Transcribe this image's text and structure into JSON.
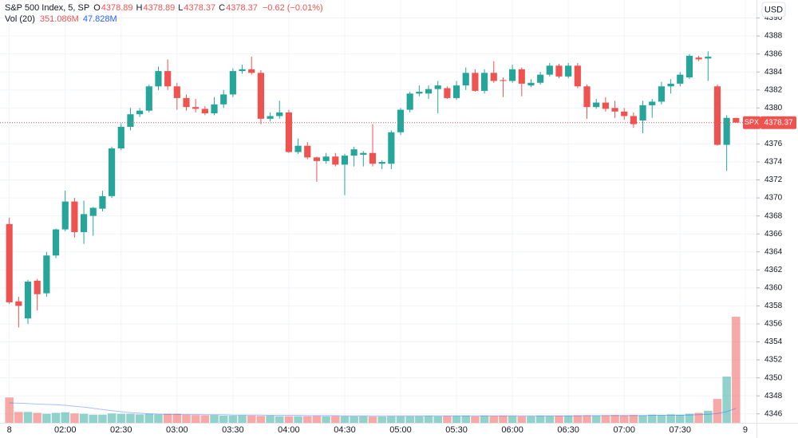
{
  "chart_data": {
    "type": "candlestick",
    "title": "S&P 500 Index, 5, SP",
    "symbol": "SPX",
    "currency": "USD",
    "ohlc_letters": [
      "O",
      "H",
      "L",
      "C"
    ],
    "change_label": "−0.62 (−0.01%)",
    "up_color": "#26a69a",
    "down_color": "#ef5350",
    "xlim": [
      -1,
      80.2
    ],
    "xticks": [
      {
        "value": 0,
        "label": "8"
      },
      {
        "value": 6,
        "label": "02:00"
      },
      {
        "value": 12,
        "label": "02:30"
      },
      {
        "value": 18,
        "label": "03:00"
      },
      {
        "value": 24,
        "label": "03:30"
      },
      {
        "value": 30,
        "label": "04:00"
      },
      {
        "value": 36,
        "label": "04:30"
      },
      {
        "value": 42,
        "label": "05:00"
      },
      {
        "value": 48,
        "label": "05:30"
      },
      {
        "value": 54,
        "label": "06:00"
      },
      {
        "value": 60,
        "label": "06:30"
      },
      {
        "value": 66,
        "label": "07:00"
      },
      {
        "value": 72,
        "label": "07:30"
      },
      {
        "value": 79,
        "label": "9"
      }
    ],
    "ylim": [
      4345,
      4392
    ],
    "yticks": [
      4346,
      4348,
      4350,
      4352,
      4354,
      4356,
      4358,
      4360,
      4362,
      4364,
      4366,
      4368,
      4370,
      4372,
      4374,
      4376,
      4378,
      4380,
      4382,
      4384,
      4386,
      4388,
      4390
    ],
    "grid": true,
    "open": [
      4367.1,
      4358.5,
      4356.6,
      4360.8,
      4359.4,
      4363.6,
      4366.5,
      4369.6,
      4366.2,
      4368.0,
      4368.8,
      4370.2,
      4375.5,
      4377.9,
      4379.3,
      4379.7,
      4382.4,
      4384.1,
      4382.4,
      4381.1,
      4380.1,
      4379.9,
      4379.4,
      4380.4,
      4381.5,
      4384.1,
      4384.3,
      4383.9,
      4378.8,
      4379.1,
      4379.5,
      4375.1,
      4375.8,
      4374.5,
      4374.1,
      4374.6,
      4373.7,
      4374.7,
      4374.8,
      4375.0,
      4373.8,
      4373.8,
      4377.3,
      4379.8,
      4381.6,
      4381.6,
      4382.1,
      4382.2,
      4381.1,
      4382.5,
      4383.9,
      4381.9,
      4383.9,
      4383.1,
      4383.0,
      4384.3,
      4382.5,
      4382.8,
      4383.7,
      4384.7,
      4383.5,
      4384.7,
      4382.4,
      4380.1,
      4380.6,
      4380.0,
      4379.6,
      4379.1,
      4378.6,
      4380.3,
      4380.7,
      4382.4,
      4382.7,
      4383.4,
      4385.6,
      4385.5,
      4382.4,
      4375.9,
      4378.89
    ],
    "high": [
      4367.8,
      4359.0,
      4360.9,
      4361.0,
      4364.0,
      4366.6,
      4370.8,
      4370.0,
      4369.7,
      4369.0,
      4370.8,
      4375.7,
      4378.3,
      4380.0,
      4380.0,
      4382.6,
      4384.6,
      4385.4,
      4382.8,
      4381.5,
      4381.0,
      4380.2,
      4381.2,
      4382.0,
      4384.4,
      4384.8,
      4385.7,
      4384.2,
      4379.5,
      4380.8,
      4379.8,
      4376.6,
      4376.2,
      4374.6,
      4375.0,
      4375.0,
      4374.9,
      4375.7,
      4375.2,
      4378.2,
      4374.2,
      4377.5,
      4380.0,
      4381.8,
      4382.5,
      4382.5,
      4383.0,
      4382.4,
      4383.0,
      4384.5,
      4384.3,
      4384.3,
      4385.2,
      4383.4,
      4384.8,
      4384.5,
      4383.2,
      4384.0,
      4385.0,
      4384.9,
      4385.0,
      4385.0,
      4382.6,
      4381.0,
      4381.2,
      4380.8,
      4380.0,
      4379.5,
      4380.8,
      4381.0,
      4382.9,
      4383.2,
      4384.0,
      4386.0,
      4385.8,
      4386.3,
      4382.6,
      4379.2,
      4378.89
    ],
    "low": [
      4358.2,
      4355.6,
      4356.0,
      4357.5,
      4359.0,
      4363.3,
      4366.3,
      4365.6,
      4364.9,
      4365.8,
      4368.5,
      4370.0,
      4375.3,
      4377.5,
      4379.0,
      4379.5,
      4382.0,
      4382.0,
      4379.8,
      4379.7,
      4379.5,
      4379.2,
      4379.2,
      4380.0,
      4381.2,
      4383.8,
      4383.7,
      4378.2,
      4378.5,
      4378.8,
      4375.0,
      4374.9,
      4374.3,
      4371.8,
      4373.8,
      4373.5,
      4370.3,
      4373.5,
      4373.5,
      4373.5,
      4373.2,
      4373.2,
      4377.0,
      4379.5,
      4381.3,
      4381.0,
      4379.4,
      4381.0,
      4380.9,
      4382.0,
      4381.8,
      4381.6,
      4382.8,
      4381.2,
      4382.8,
      4381.3,
      4382.3,
      4382.6,
      4383.5,
      4383.3,
      4383.3,
      4382.2,
      4378.8,
      4379.9,
      4379.6,
      4378.9,
      4378.7,
      4377.8,
      4377.2,
      4378.9,
      4380.4,
      4381.6,
      4382.4,
      4383.2,
      4385.2,
      4383.0,
      4375.8,
      4373.0,
      4378.37
    ],
    "close": [
      4358.4,
      4358.0,
      4360.7,
      4359.3,
      4363.6,
      4366.5,
      4369.6,
      4366.2,
      4368.2,
      4368.9,
      4370.2,
      4375.5,
      4377.9,
      4379.3,
      4379.7,
      4382.4,
      4384.1,
      4382.4,
      4381.1,
      4380.1,
      4379.9,
      4379.4,
      4380.4,
      4381.5,
      4384.1,
      4384.3,
      4383.9,
      4378.8,
      4379.1,
      4379.5,
      4375.1,
      4375.8,
      4374.5,
      4374.1,
      4374.6,
      4373.7,
      4374.7,
      4375.4,
      4375.0,
      4373.8,
      4374.0,
      4377.3,
      4379.8,
      4381.6,
      4381.8,
      4382.1,
      4382.5,
      4381.1,
      4382.5,
      4383.9,
      4381.9,
      4383.9,
      4383.0,
      4383.0,
      4384.3,
      4382.7,
      4382.8,
      4383.7,
      4384.7,
      4383.5,
      4384.7,
      4382.4,
      4380.1,
      4380.6,
      4379.9,
      4379.6,
      4379.1,
      4378.2,
      4380.3,
      4380.7,
      4382.4,
      4382.7,
      4383.7,
      4385.8,
      4385.4,
      4385.7,
      4375.9,
      4378.9,
      4378.37
    ],
    "volume": {
      "name": "Vol (20)",
      "last_label": "351.086M",
      "ma_last_label": "47.828M",
      "ma_color": "#2962ff",
      "values": [
        84,
        36,
        36,
        33,
        30,
        33,
        35,
        31,
        30,
        27,
        27,
        31,
        30,
        30,
        28,
        30,
        28,
        30,
        30,
        27,
        26,
        25,
        26,
        24,
        24,
        25,
        24,
        23,
        24,
        22,
        22,
        22,
        22,
        23,
        22,
        23,
        22,
        22,
        22,
        21,
        21,
        22,
        22,
        22,
        22,
        23,
        22,
        23,
        23,
        24,
        22,
        24,
        23,
        24,
        23,
        22,
        22,
        24,
        23,
        24,
        24,
        25,
        25,
        24,
        25,
        26,
        25,
        26,
        25,
        27,
        26,
        28,
        27,
        30,
        33,
        40,
        79,
        153,
        351.086
      ],
      "ma_values": [
        66,
        65,
        64,
        62,
        61,
        60,
        58,
        55,
        52,
        48,
        44,
        40,
        37,
        34,
        32,
        30,
        29,
        28,
        28,
        28,
        28,
        27,
        27,
        27,
        26,
        26,
        26,
        26,
        25,
        25,
        25,
        25,
        24,
        24,
        24,
        24,
        23,
        23,
        23,
        23,
        23,
        23,
        23,
        23,
        23,
        23,
        23,
        23,
        23,
        23,
        23,
        23,
        23,
        23,
        23,
        23,
        23,
        23,
        23,
        23,
        23,
        23,
        24,
        24,
        24,
        24,
        24,
        24,
        24,
        25,
        25,
        25,
        25,
        26,
        27,
        28,
        31,
        37,
        47.828
      ]
    }
  }
}
